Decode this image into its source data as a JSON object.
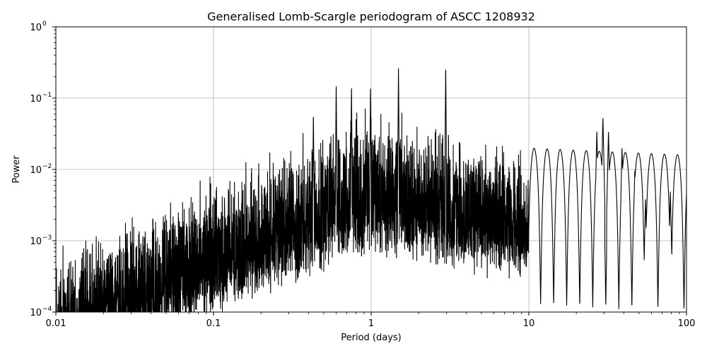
{
  "chart_data": {
    "type": "line",
    "title": "Generalised Lomb-Scargle periodogram of ASCC 1208932",
    "xlabel": "Period (days)",
    "ylabel": "Power",
    "x_scale": "log",
    "y_scale": "log",
    "xlim": [
      0.01,
      100
    ],
    "ylim": [
      0.0001,
      1
    ],
    "grid": true,
    "line_color": "#000000",
    "grid_color": "#b0b0b0",
    "x_ticks": [
      {
        "value": 0.01,
        "label": "0.01"
      },
      {
        "value": 0.1,
        "label": "0.1"
      },
      {
        "value": 1,
        "label": "1"
      },
      {
        "value": 10,
        "label": "10"
      },
      {
        "value": 100,
        "label": "100"
      }
    ],
    "y_ticks": [
      {
        "value": 0.0001,
        "base": "10",
        "exp": "−4"
      },
      {
        "value": 0.001,
        "base": "10",
        "exp": "−3"
      },
      {
        "value": 0.01,
        "base": "10",
        "exp": "−2"
      },
      {
        "value": 0.1,
        "base": "10",
        "exp": "−1"
      },
      {
        "value": 1,
        "base": "10",
        "exp": "0"
      }
    ],
    "peaks": [
      {
        "period": 2.97,
        "power": 0.31
      },
      {
        "period": 1.49,
        "power": 0.28
      },
      {
        "period": 0.99,
        "power": 0.16
      },
      {
        "period": 0.75,
        "power": 0.17
      },
      {
        "period": 0.6,
        "power": 0.18
      },
      {
        "period": 0.43,
        "power": 0.07
      },
      {
        "period": 29.5,
        "power": 0.054
      },
      {
        "period": 27.0,
        "power": 0.035
      },
      {
        "period": 32.0,
        "power": 0.035
      },
      {
        "period": 39.0,
        "power": 0.021
      },
      {
        "period": 47.0,
        "power": 0.01
      },
      {
        "period": 55.0,
        "power": 0.0041
      },
      {
        "period": 64.0,
        "power": 0.0013
      },
      {
        "period": 79.0,
        "power": 0.0049
      },
      {
        "period": 99.0,
        "power": 0.0008
      }
    ]
  }
}
